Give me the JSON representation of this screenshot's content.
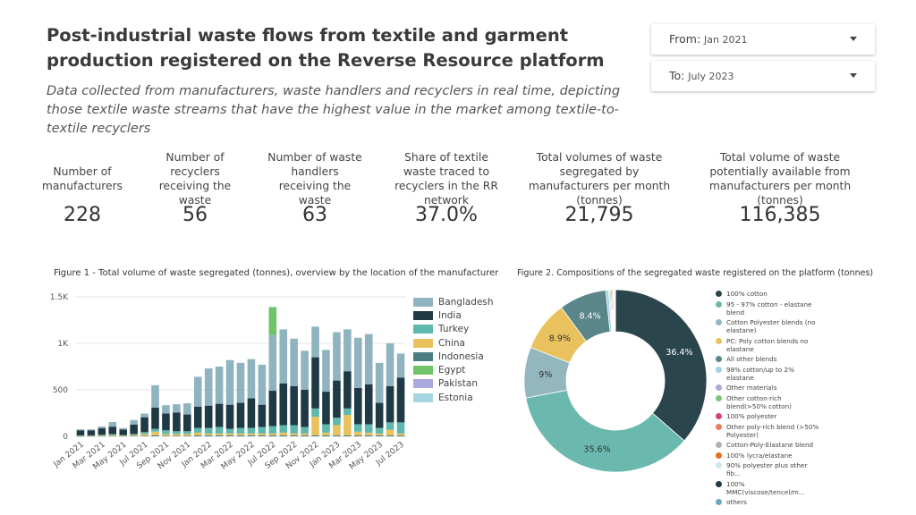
{
  "header": {
    "title": "Post-industrial waste flows from textile and garment production registered on the Reverse Resource platform",
    "subtitle": "Data collected from manufacturers, waste handlers and recyclers in real time, depicting those textile waste streams that have the highest value in the market among textile-to-textile recyclers"
  },
  "filters": {
    "from": {
      "label": "From:",
      "value": "Jan 2021"
    },
    "to": {
      "label": "To:",
      "value": "July 2023"
    }
  },
  "kpis": [
    {
      "label": "Number of manufacturers",
      "value": "228"
    },
    {
      "label": "Number of recyclers receiving the waste",
      "value": "56"
    },
    {
      "label": "Number of waste handlers receiving the waste",
      "value": "63"
    },
    {
      "label": "Share of textile waste traced to recyclers in the RR network",
      "value": "37.0%"
    },
    {
      "label": "Total volumes of waste segregated by manufacturers per month (tonnes)",
      "value": "21,795"
    },
    {
      "label": "Total volume of waste potentially available from manufacturers per month (tonnes)",
      "value": "116,385"
    }
  ],
  "figure1": {
    "title": "Figure 1 - Total volume of waste segregated (tonnes), overview by the location of the manufacturer"
  },
  "figure2": {
    "title": "Figure 2. Compositions of the segregated waste registered on the platform (tonnes)"
  },
  "chart_data": [
    {
      "type": "bar",
      "stacked": true,
      "title": "Figure 1 - Total volume of waste segregated (tonnes), overview by the location of the manufacturer",
      "ylim": [
        0,
        1500
      ],
      "yticks": [
        0,
        500,
        1000,
        1500
      ],
      "ytick_labels": [
        "0",
        "500",
        "1K",
        "1.5K"
      ],
      "grid": true,
      "legend_position": "right",
      "categories": [
        "Jan 2021",
        "Feb 2021",
        "Mar 2021",
        "Apr 2021",
        "May 2021",
        "Jun 2021",
        "Jul 2021",
        "Aug 2021",
        "Sep 2021",
        "Oct 2021",
        "Nov 2021",
        "Dec 2021",
        "Jan 2022",
        "Feb 2022",
        "Mar 2022",
        "Apr 2022",
        "May 2022",
        "Jun 2022",
        "Jul 2022",
        "Aug 2022",
        "Sep 2022",
        "Oct 2022",
        "Nov 2022",
        "Dec 2022",
        "Jan 2023",
        "Feb 2023",
        "Mar 2023",
        "Apr 2023",
        "May 2023",
        "Jun 2023",
        "Jul 2023"
      ],
      "xtick_labels": [
        "Jan 2021",
        "Mar 2021",
        "May 2021",
        "Jul 2021",
        "Sep 2021",
        "Nov 2021",
        "Jan 2022",
        "Mar 2022",
        "May 2022",
        "Jul 2022",
        "Sep 2022",
        "Nov 2022",
        "Jan 2023",
        "Mar 2023",
        "May 2023",
        "Jul 2023"
      ],
      "series": [
        {
          "name": "Bangladesh",
          "color": "#8fb4c0",
          "values": [
            10,
            10,
            20,
            50,
            15,
            50,
            40,
            240,
            90,
            90,
            120,
            320,
            400,
            400,
            480,
            430,
            420,
            430,
            600,
            580,
            510,
            420,
            330,
            450,
            520,
            450,
            540,
            540,
            430,
            460,
            260
          ]
        },
        {
          "name": "India",
          "color": "#1f3a44",
          "values": [
            55,
            55,
            70,
            80,
            60,
            100,
            160,
            230,
            180,
            200,
            180,
            230,
            240,
            250,
            260,
            270,
            320,
            240,
            380,
            450,
            420,
            400,
            550,
            350,
            400,
            400,
            390,
            430,
            270,
            390,
            480
          ]
        },
        {
          "name": "Turkey",
          "color": "#5db8ad",
          "values": [
            5,
            5,
            8,
            10,
            5,
            10,
            20,
            30,
            40,
            30,
            30,
            50,
            60,
            70,
            50,
            60,
            60,
            70,
            80,
            80,
            90,
            70,
            90,
            90,
            80,
            70,
            80,
            90,
            60,
            80,
            120
          ]
        },
        {
          "name": "China",
          "color": "#e9c25d",
          "values": [
            3,
            3,
            5,
            10,
            5,
            10,
            20,
            40,
            20,
            20,
            20,
            30,
            20,
            20,
            20,
            20,
            20,
            20,
            20,
            30,
            20,
            20,
            200,
            30,
            110,
            220,
            40,
            30,
            20,
            60,
            20
          ]
        },
        {
          "name": "Indonesia",
          "color": "#4b7f85",
          "values": [
            2,
            2,
            3,
            4,
            3,
            5,
            5,
            10,
            5,
            5,
            5,
            10,
            10,
            10,
            10,
            10,
            10,
            10,
            10,
            10,
            10,
            10,
            10,
            10,
            10,
            10,
            10,
            10,
            10,
            10,
            10
          ]
        },
        {
          "name": "Egypt",
          "color": "#6fc46a",
          "values": [
            0,
            0,
            0,
            0,
            0,
            0,
            0,
            0,
            0,
            0,
            0,
            0,
            0,
            0,
            0,
            0,
            0,
            0,
            300,
            0,
            0,
            0,
            0,
            0,
            0,
            0,
            0,
            0,
            0,
            0,
            0
          ]
        },
        {
          "name": "Pakistan",
          "color": "#a9a9de",
          "values": [
            0,
            0,
            0,
            0,
            0,
            0,
            0,
            0,
            0,
            0,
            0,
            0,
            0,
            0,
            0,
            0,
            0,
            0,
            0,
            0,
            0,
            0,
            0,
            0,
            0,
            0,
            0,
            0,
            0,
            0,
            0
          ]
        },
        {
          "name": "Estonia",
          "color": "#a7d6e2",
          "values": [
            0,
            0,
            0,
            0,
            0,
            0,
            0,
            0,
            0,
            0,
            0,
            0,
            0,
            0,
            0,
            0,
            0,
            0,
            0,
            0,
            0,
            0,
            0,
            0,
            0,
            0,
            0,
            0,
            0,
            0,
            0
          ]
        }
      ]
    },
    {
      "type": "pie",
      "donut": true,
      "title": "Figure 2. Compositions of the segregated waste registered on the platform (tonnes)",
      "legend_position": "right",
      "slices": [
        {
          "name": "100% cotton",
          "value": 36.4,
          "label": "36.4%",
          "color": "#2b454c"
        },
        {
          "name": "95 - 97% cotton - elastane blend",
          "value": 35.6,
          "label": "35.6%",
          "color": "#6bb9ae"
        },
        {
          "name": "Cotton Polyester blends (no elastane)",
          "value": 9.0,
          "label": "9%",
          "color": "#93b6bf"
        },
        {
          "name": "PC: Poly cotton blends no elastane",
          "value": 8.9,
          "label": "8.9%",
          "color": "#e9c25d"
        },
        {
          "name": "All other blends",
          "value": 8.4,
          "label": "8.4%",
          "color": "#5a8589"
        },
        {
          "name": "98% cotton/up to 2% elastane",
          "value": 0.5,
          "label": "",
          "color": "#9fd4e2"
        },
        {
          "name": "Other materials",
          "value": 0.2,
          "label": "",
          "color": "#a9a9de"
        },
        {
          "name": "Other cotton-rich blend(>50% cotton)",
          "value": 0.2,
          "label": "",
          "color": "#7cc47a"
        },
        {
          "name": "100% polyester",
          "value": 0.2,
          "label": "",
          "color": "#d8436e"
        },
        {
          "name": "Other poly-rich blend (>50% Polyester)",
          "value": 0.2,
          "label": "",
          "color": "#ee7b5d"
        },
        {
          "name": "Cotton-Poly-Elastane blend",
          "value": 0.1,
          "label": "",
          "color": "#b0b0b0"
        },
        {
          "name": "100% lycra/elastane",
          "value": 0.1,
          "label": "",
          "color": "#e86f1c"
        },
        {
          "name": "90% polyester plus other fib...",
          "value": 0.1,
          "label": "",
          "color": "#cde6ee"
        },
        {
          "name": "100% MMC(viscose/tencel/m...",
          "value": 0.05,
          "label": "",
          "color": "#1f3a44"
        },
        {
          "name": "others",
          "value": 0.05,
          "label": "",
          "color": "#6aa9c0"
        }
      ]
    }
  ]
}
